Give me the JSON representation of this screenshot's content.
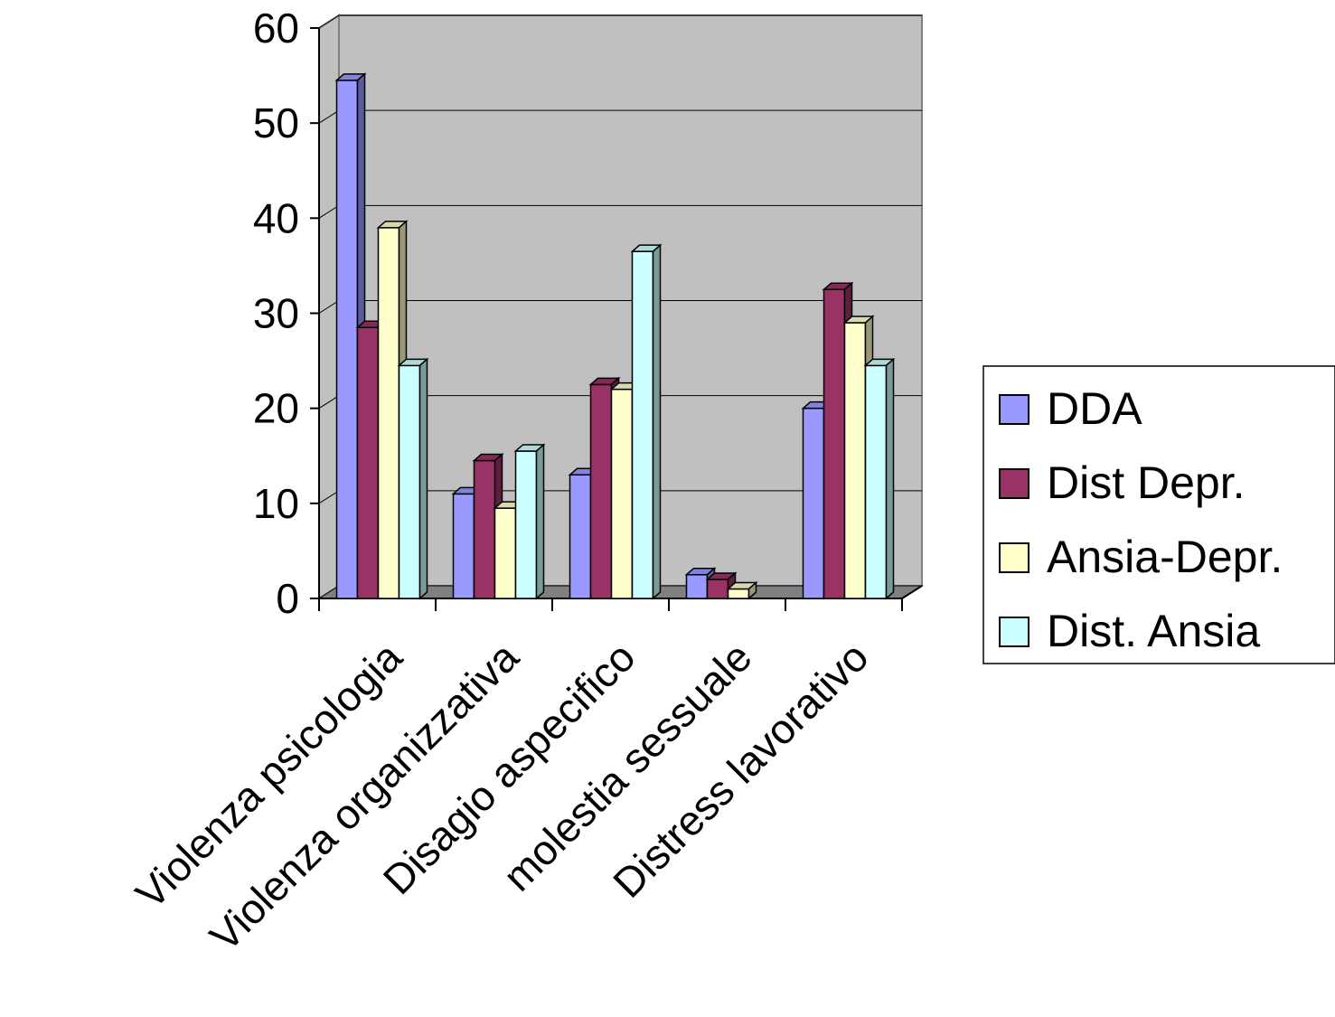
{
  "chart_data": {
    "type": "bar",
    "title": "",
    "xlabel": "",
    "ylabel": "",
    "ylim": [
      0,
      60
    ],
    "yticks": [
      0,
      10,
      20,
      30,
      40,
      50,
      60
    ],
    "grid": true,
    "legend_position": "right",
    "categories": [
      "Violenza psicologia",
      "Violenza organizzativa",
      "Disagio aspecifico",
      "molestia sessuale",
      "Distress lavorativo"
    ],
    "series": [
      {
        "name": "DDA",
        "color": "#9999ff",
        "values": [
          54.5,
          11,
          13,
          2.5,
          20
        ]
      },
      {
        "name": "Dist Depr.",
        "color": "#993366",
        "values": [
          28.5,
          14.5,
          22.5,
          2,
          32.5
        ]
      },
      {
        "name": "Ansia-Depr.",
        "color": "#ffffcc",
        "values": [
          39,
          9.5,
          22,
          1,
          29
        ]
      },
      {
        "name": "Dist. Ansia",
        "color": "#ccffff",
        "values": [
          24.5,
          15.5,
          36.5,
          0,
          24.5
        ]
      }
    ],
    "wall_color": "#c0c0c0",
    "floor_color": "#808080"
  }
}
